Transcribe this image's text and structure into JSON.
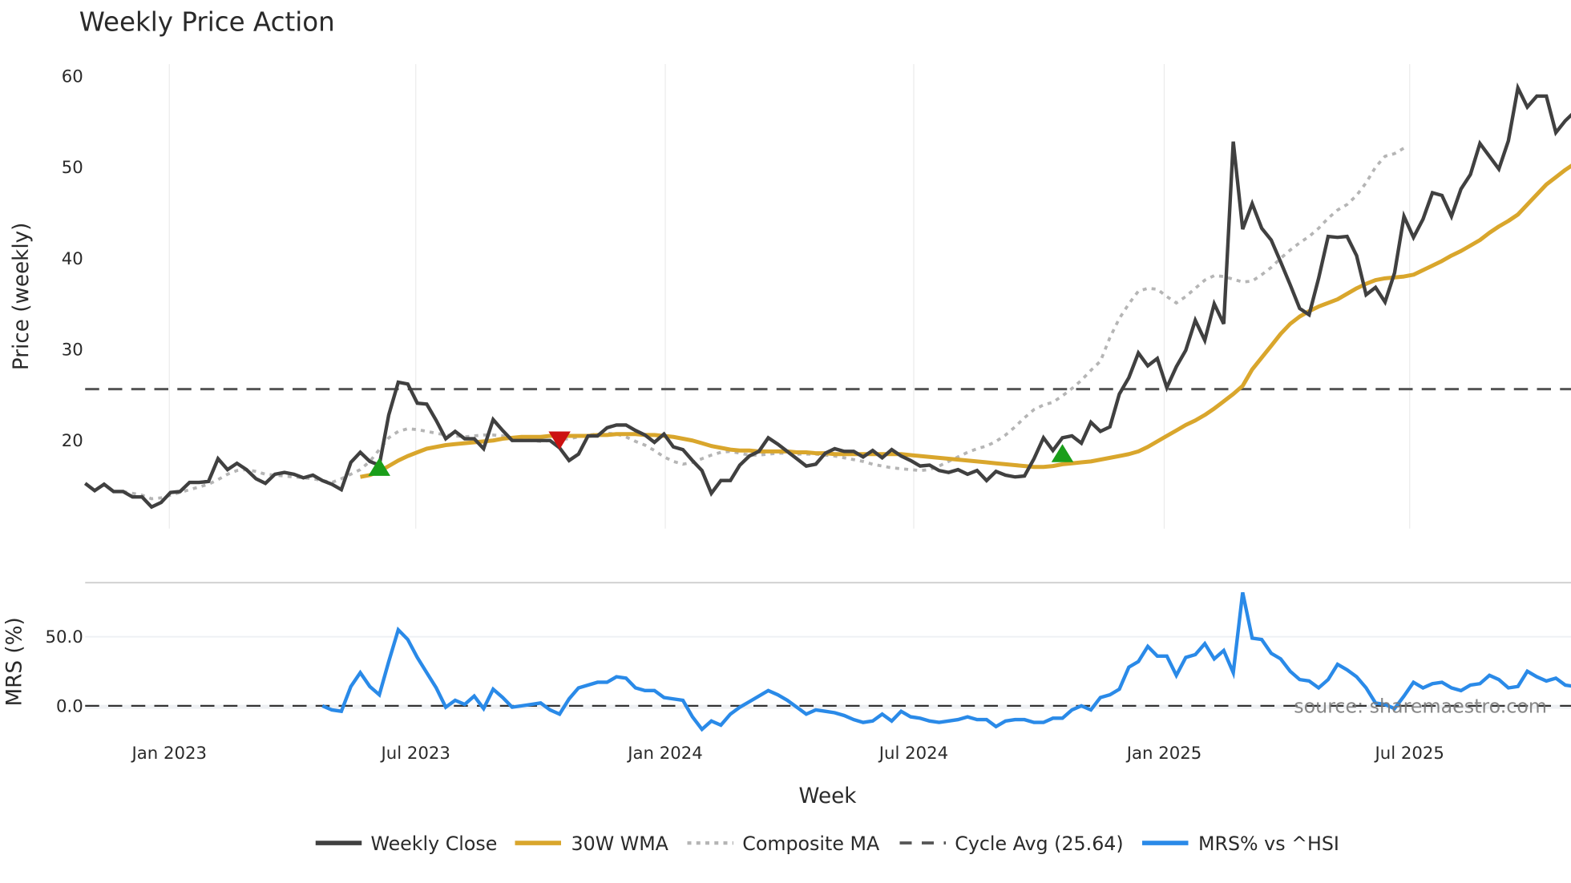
{
  "title": "Weekly Price Action",
  "source": "source: sharemaestro.com",
  "chart_data": [
    {
      "type": "line",
      "panel": "price",
      "title": "Weekly Price Action",
      "xlabel": "",
      "ylabel": "Price (weekly)",
      "ylim": [
        10,
        62
      ],
      "yticks": [
        20,
        30,
        40,
        50,
        60
      ],
      "grid": true,
      "legend_position": "bottom",
      "x_start": "2022-11-07",
      "x_step": "1 week",
      "series": [
        {
          "name": "Weekly Close",
          "color": "#404040",
          "style": "solid",
          "start_index": 0,
          "values": [
            15.3,
            14.5,
            15.2,
            14.4,
            14.4,
            13.8,
            13.8,
            12.7,
            13.2,
            14.3,
            14.4,
            15.4,
            15.4,
            15.5,
            18.0,
            16.8,
            17.5,
            16.8,
            15.8,
            15.3,
            16.3,
            16.5,
            16.3,
            15.9,
            16.2,
            15.6,
            15.2,
            14.6,
            17.6,
            18.7,
            17.7,
            17.3,
            22.8,
            26.4,
            26.2,
            24.1,
            24.0,
            22.2,
            20.2,
            21.0,
            20.2,
            20.2,
            19.1,
            22.3,
            21.1,
            20.0,
            20.0,
            20.0,
            20.0,
            20.0,
            19.2,
            17.8,
            18.5,
            20.5,
            20.5,
            21.4,
            21.7,
            21.7,
            21.1,
            20.6,
            19.8,
            20.7,
            19.3,
            19.0,
            17.8,
            16.7,
            14.2,
            15.6,
            15.6,
            17.3,
            18.3,
            18.8,
            20.3,
            19.6,
            18.8,
            18.0,
            17.2,
            17.4,
            18.6,
            19.1,
            18.8,
            18.8,
            18.2,
            18.9,
            18.1,
            19.0,
            18.3,
            17.8,
            17.2,
            17.3,
            16.7,
            16.5,
            16.8,
            16.3,
            16.7,
            15.6,
            16.6,
            16.2,
            16.0,
            16.1,
            18.0,
            20.3,
            18.9,
            20.3,
            20.5,
            19.7,
            22.0,
            21.0,
            21.5,
            25.1,
            26.9,
            29.6,
            28.2,
            29.0,
            25.8,
            28.1,
            29.9,
            33.2,
            31.0,
            35.0,
            32.8,
            52.8,
            43.2,
            46.0,
            43.3,
            42.0,
            39.6,
            37.1,
            34.5,
            33.8,
            37.8,
            42.4,
            42.3,
            42.4,
            40.3,
            36.0,
            36.8,
            35.2,
            38.4,
            44.6,
            42.3,
            44.3,
            47.2,
            46.9,
            44.6,
            47.6,
            49.2,
            52.6,
            51.2,
            49.8,
            52.9,
            58.7,
            56.6,
            57.8,
            57.8,
            53.8,
            55.1,
            56.1
          ]
        },
        {
          "name": "30W WMA",
          "color": "#d9a62c",
          "style": "solid",
          "start_index": 29,
          "values": [
            16.0,
            16.2,
            16.6,
            17.2,
            17.8,
            18.3,
            18.7,
            19.1,
            19.3,
            19.5,
            19.6,
            19.7,
            19.8,
            19.9,
            20.0,
            20.2,
            20.3,
            20.4,
            20.4,
            20.4,
            20.5,
            20.5,
            20.5,
            20.5,
            20.5,
            20.6,
            20.6,
            20.7,
            20.7,
            20.7,
            20.6,
            20.6,
            20.5,
            20.4,
            20.2,
            20.0,
            19.7,
            19.4,
            19.2,
            19.0,
            18.9,
            18.9,
            18.8,
            18.8,
            18.8,
            18.8,
            18.7,
            18.7,
            18.6,
            18.6,
            18.5,
            18.5,
            18.5,
            18.5,
            18.5,
            18.5,
            18.5,
            18.5,
            18.4,
            18.3,
            18.2,
            18.1,
            18.0,
            17.9,
            17.8,
            17.7,
            17.6,
            17.5,
            17.4,
            17.3,
            17.2,
            17.1,
            17.1,
            17.2,
            17.4,
            17.5,
            17.6,
            17.7,
            17.9,
            18.1,
            18.3,
            18.5,
            18.8,
            19.3,
            19.9,
            20.5,
            21.1,
            21.7,
            22.2,
            22.8,
            23.5,
            24.3,
            25.1,
            26.0,
            27.8,
            29.1,
            30.4,
            31.7,
            32.8,
            33.6,
            34.2,
            34.7,
            35.1,
            35.5,
            36.1,
            36.7,
            37.2,
            37.6,
            37.8,
            37.9,
            38.0,
            38.2,
            38.7,
            39.2,
            39.7,
            40.3,
            40.8,
            41.4,
            42.0,
            42.8,
            43.5,
            44.1,
            44.8,
            45.9,
            47.0,
            48.1,
            48.9,
            49.7,
            50.4
          ]
        },
        {
          "name": "Composite MA",
          "color": "#b5b5b5",
          "style": "dotted",
          "start_index": 4,
          "values": [
            14.4,
            14.2,
            14.0,
            13.6,
            13.7,
            14.0,
            14.3,
            14.6,
            14.9,
            15.2,
            15.7,
            16.3,
            16.7,
            16.8,
            16.6,
            16.3,
            16.2,
            16.1,
            16.0,
            15.9,
            15.8,
            15.6,
            15.4,
            15.8,
            16.3,
            16.8,
            17.7,
            19.0,
            20.3,
            21.0,
            21.3,
            21.2,
            21.0,
            20.8,
            20.6,
            20.5,
            20.4,
            20.5,
            20.6,
            20.6,
            20.5,
            20.3,
            20.1,
            20.0,
            19.9,
            20.0,
            20.1,
            20.2,
            20.4,
            20.6,
            20.7,
            20.8,
            20.7,
            20.4,
            19.9,
            19.5,
            18.9,
            18.2,
            17.7,
            17.4,
            17.6,
            18.0,
            18.4,
            18.7,
            18.8,
            18.6,
            18.4,
            18.4,
            18.5,
            18.6,
            18.6,
            18.5,
            18.5,
            18.5,
            18.4,
            18.3,
            18.1,
            17.9,
            17.7,
            17.4,
            17.2,
            17.0,
            16.9,
            16.8,
            16.7,
            16.8,
            17.2,
            17.7,
            18.2,
            18.7,
            19.1,
            19.4,
            19.9,
            20.6,
            21.5,
            22.5,
            23.4,
            23.9,
            24.2,
            24.9,
            25.7,
            26.6,
            27.7,
            28.7,
            31.3,
            33.4,
            35.0,
            36.4,
            36.7,
            36.6,
            35.8,
            35.1,
            35.8,
            36.7,
            37.6,
            38.1,
            38.0,
            37.7,
            37.4,
            37.5,
            38.2,
            39.0,
            40.0,
            40.9,
            41.7,
            42.4,
            43.3,
            44.4,
            45.3,
            45.9,
            46.9,
            48.3,
            50.0,
            51.2,
            51.5,
            52.1
          ]
        },
        {
          "name": "Cycle Avg (25.64)",
          "color": "#555555",
          "style": "dashed",
          "constant": 25.64
        }
      ],
      "markers": [
        {
          "type": "buy",
          "shape": "triangle-up",
          "color": "#1a9e1a",
          "index": 31,
          "value": 17.0
        },
        {
          "type": "sell",
          "shape": "triangle-down",
          "color": "#cc1111",
          "index": 50,
          "value": 20.0
        },
        {
          "type": "buy",
          "shape": "triangle-up",
          "color": "#1a9e1a",
          "index": 103,
          "value": 18.5
        }
      ]
    },
    {
      "type": "line",
      "panel": "mrs",
      "xlabel": "Week",
      "ylabel": "MRS (%)",
      "ylim": [
        -25,
        90
      ],
      "yticks": [
        "0.0",
        "50.0"
      ],
      "zero_line": "dashed",
      "x_ticks": [
        "Jan 2023",
        "Jul 2023",
        "Jan 2024",
        "Jul 2024",
        "Jan 2025",
        "Jul 2025"
      ],
      "series": [
        {
          "name": "MRS% vs ^HSI",
          "color": "#2a8ae8",
          "style": "solid",
          "start_index": 25,
          "values": [
            0,
            -3,
            -4,
            14,
            24,
            14,
            8,
            32,
            55,
            48,
            35,
            24,
            13,
            -1,
            4,
            1,
            7,
            -2,
            12,
            6,
            -1,
            0,
            1,
            2,
            -3,
            -6,
            5,
            13,
            15,
            17,
            17,
            21,
            20,
            13,
            11,
            11,
            6,
            5,
            4,
            -8,
            -17,
            -11,
            -14,
            -6,
            -1,
            3,
            7,
            11,
            8,
            4,
            -1,
            -6,
            -3,
            -4,
            -5,
            -7,
            -10,
            -12,
            -11,
            -6,
            -11,
            -4,
            -8,
            -9,
            -11,
            -12,
            -11,
            -10,
            -8,
            -10,
            -10,
            -15,
            -11,
            -10,
            -10,
            -12,
            -12,
            -9,
            -9,
            -3,
            0,
            -3,
            6,
            8,
            12,
            28,
            32,
            43,
            36,
            36,
            22,
            35,
            37,
            45,
            34,
            40,
            24,
            82,
            49,
            48,
            38,
            34,
            25,
            19,
            18,
            13,
            19,
            30,
            26,
            21,
            13,
            2,
            1,
            -2,
            7,
            17,
            13,
            16,
            17,
            13,
            11,
            15,
            16,
            22,
            19,
            13,
            14,
            25,
            21,
            18,
            20,
            15,
            14,
            14
          ]
        }
      ]
    }
  ],
  "axes": {
    "price_yticks": [
      "20",
      "30",
      "40",
      "50",
      "60"
    ],
    "price_ylabel": "Price (weekly)",
    "mrs_yticks": [
      "0.0",
      "50.0"
    ],
    "mrs_ylabel": "MRS (%)",
    "xlabel": "Week",
    "xticks": [
      "Jan 2023",
      "Jul 2023",
      "Jan 2024",
      "Jul 2024",
      "Jan 2025",
      "Jul 2025"
    ]
  },
  "legend": [
    {
      "label": "Weekly Close",
      "color": "#404040",
      "style": "solid"
    },
    {
      "label": "30W WMA",
      "color": "#d9a62c",
      "style": "solid"
    },
    {
      "label": "Composite MA",
      "color": "#b5b5b5",
      "style": "dotted"
    },
    {
      "label": "Cycle Avg (25.64)",
      "color": "#555555",
      "style": "dashed"
    },
    {
      "label": "MRS% vs ^HSI",
      "color": "#2a8ae8",
      "style": "solid"
    }
  ]
}
